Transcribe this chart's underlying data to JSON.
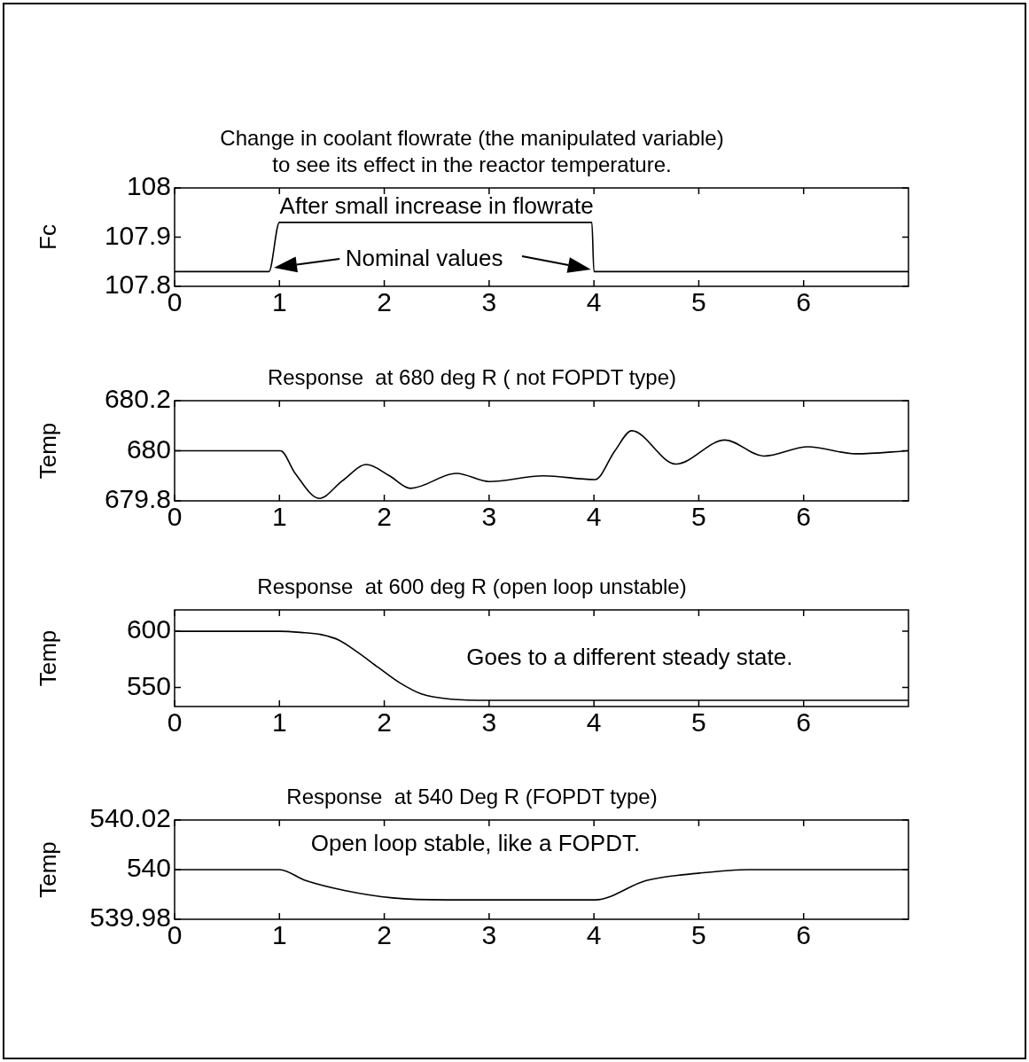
{
  "chart_data": [
    {
      "type": "line",
      "title": "Change in coolant flowrate (the manipulated variable)\nto see its effect in the reactor temperature.",
      "ylabel": "Fc",
      "x": [
        0,
        0.9,
        1.0,
        3.98,
        4.0,
        7
      ],
      "values": [
        107.83,
        107.83,
        107.93,
        107.93,
        107.83,
        107.83
      ],
      "color": "#000000",
      "xlim": [
        0,
        7
      ],
      "xticks": [
        0,
        1,
        2,
        3,
        4,
        5,
        6
      ],
      "ylim": [
        107.8,
        108
      ],
      "yticks": [
        107.8,
        107.9,
        108
      ],
      "grid": false,
      "legend": false,
      "marker": "none",
      "line_style": "solid",
      "annotations": [
        "After small increase in flowrate",
        "Nominal values"
      ]
    },
    {
      "type": "line",
      "title": "Response  at 680 deg R ( not FOPDT type)",
      "ylabel": "Temp",
      "x": [
        0,
        1.01,
        1.15,
        1.38,
        1.6,
        1.83,
        2.05,
        2.25,
        2.69,
        3.0,
        3.52,
        4.01,
        4.2,
        4.36,
        4.78,
        5.25,
        5.62,
        6.04,
        6.5,
        7
      ],
      "values": [
        680,
        680,
        679.91,
        679.81,
        679.88,
        679.945,
        679.9,
        679.85,
        679.91,
        679.877,
        679.9,
        679.885,
        680.0,
        680.08,
        679.947,
        680.043,
        679.979,
        680.016,
        679.988,
        680.0
      ],
      "color": "#000000",
      "xlim": [
        0,
        7
      ],
      "xticks": [
        0,
        1,
        2,
        3,
        4,
        5,
        6
      ],
      "ylim": [
        679.8,
        680.2
      ],
      "yticks": [
        679.8,
        680,
        680.2
      ],
      "grid": false,
      "legend": false,
      "marker": "none",
      "line_style": "solid"
    },
    {
      "type": "line",
      "title": "Response  at 600 deg R (open loop unstable)",
      "ylabel": "Temp",
      "x": [
        0,
        1,
        1.2,
        1.4,
        1.57,
        1.75,
        1.94,
        2.15,
        2.36,
        2.64,
        3,
        7
      ],
      "values": [
        600,
        600,
        599,
        597,
        592,
        581,
        568,
        554,
        544,
        539.5,
        538.5,
        538.5
      ],
      "color": "#000000",
      "xlim": [
        0,
        7
      ],
      "xticks": [
        0,
        1,
        2,
        3,
        4,
        5,
        6
      ],
      "ylim": [
        533,
        619
      ],
      "yticks": [
        550,
        600
      ],
      "grid": false,
      "legend": false,
      "marker": "none",
      "line_style": "solid",
      "annotations": [
        "Goes to a different steady state."
      ]
    },
    {
      "type": "line",
      "title": "Response  at 540 Deg R (FOPDT type)",
      "ylabel": "Temp",
      "x": [
        0,
        1.0,
        1.25,
        1.62,
        2.08,
        2.6,
        4.01,
        4.5,
        5.01,
        5.48,
        7
      ],
      "values": [
        540,
        540,
        539.9956,
        539.9916,
        539.9886,
        539.9878,
        539.9878,
        539.9956,
        539.9986,
        540,
        540
      ],
      "color": "#000000",
      "xlim": [
        0,
        7
      ],
      "xticks": [
        0,
        1,
        2,
        3,
        4,
        5,
        6
      ],
      "ylim": [
        539.98,
        540.02
      ],
      "yticks": [
        539.98,
        540,
        540.02
      ],
      "grid": false,
      "legend": false,
      "marker": "none",
      "line_style": "solid",
      "annotations": [
        "Open loop stable, like a FOPDT."
      ]
    }
  ]
}
